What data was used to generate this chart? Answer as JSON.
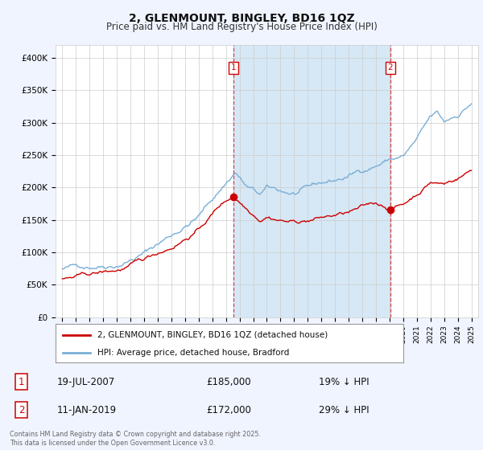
{
  "title1": "2, GLENMOUNT, BINGLEY, BD16 1QZ",
  "title2": "Price paid vs. HM Land Registry's House Price Index (HPI)",
  "bg_color": "#f0f4ff",
  "plot_bg_color": "#ffffff",
  "hpi_color": "#7aaed6",
  "hpi_fill_color": "#d6e8f5",
  "price_color": "#cc0000",
  "ylim": [
    0,
    420000
  ],
  "yticks": [
    0,
    50000,
    100000,
    150000,
    200000,
    250000,
    300000,
    350000,
    400000
  ],
  "ytick_labels": [
    "£0",
    "£50K",
    "£100K",
    "£150K",
    "£200K",
    "£250K",
    "£300K",
    "£350K",
    "£400K"
  ],
  "sale1_date": "19-JUL-2007",
  "sale1_price": 185000,
  "sale1_pct": "19%",
  "sale2_date": "11-JAN-2019",
  "sale2_price": 172000,
  "sale2_pct": "29%",
  "sale1_x": 2007.54,
  "sale2_x": 2019.04,
  "legend1": "2, GLENMOUNT, BINGLEY, BD16 1QZ (detached house)",
  "legend2": "HPI: Average price, detached house, Bradford",
  "footer": "Contains HM Land Registry data © Crown copyright and database right 2025.\nThis data is licensed under the Open Government Licence v3.0.",
  "grid_color": "#cccccc",
  "dashed_color": "#dd4444"
}
